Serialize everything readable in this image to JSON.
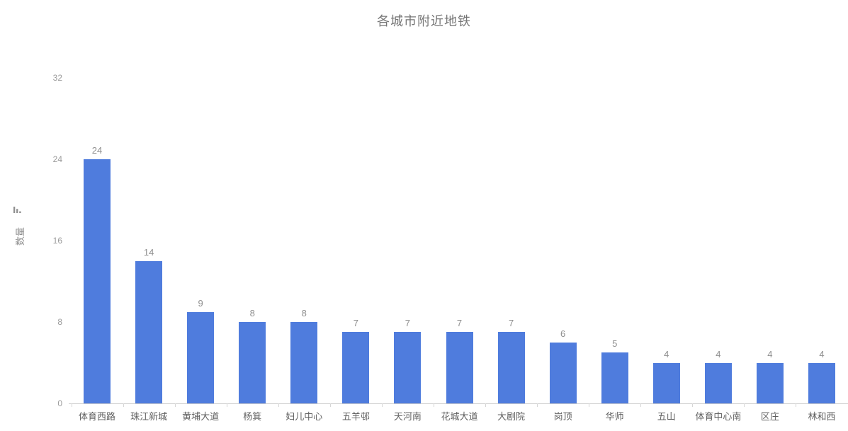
{
  "chart_data": {
    "type": "bar",
    "title": "各城市附近地铁",
    "categories": [
      "体育西路",
      "珠江新城",
      "黄埔大道",
      "杨箕",
      "妇儿中心",
      "五羊邨",
      "天河南",
      "花城大道",
      "大剧院",
      "岗顶",
      "华师",
      "五山",
      "体育中心南",
      "区庄",
      "林和西"
    ],
    "values": [
      24,
      14,
      9,
      8,
      8,
      7,
      7,
      7,
      7,
      6,
      5,
      4,
      4,
      4,
      4
    ],
    "xlabel": "",
    "ylabel": "数量",
    "yticks": [
      0,
      8,
      16,
      24,
      32
    ],
    "ylim": [
      0,
      32
    ],
    "grid": false,
    "legend_position": "none",
    "value_labels_shown": true,
    "colors": {
      "bar": "#4f7cdd",
      "value_label": "#8f8f8f",
      "category_label": "#606060",
      "ytick_label": "#9b9b9b",
      "title": "#767676",
      "axis_line": "#cccccc",
      "background": "#ffffff"
    }
  },
  "icons": {
    "ylabel_mark": "descending-bars-mark"
  }
}
